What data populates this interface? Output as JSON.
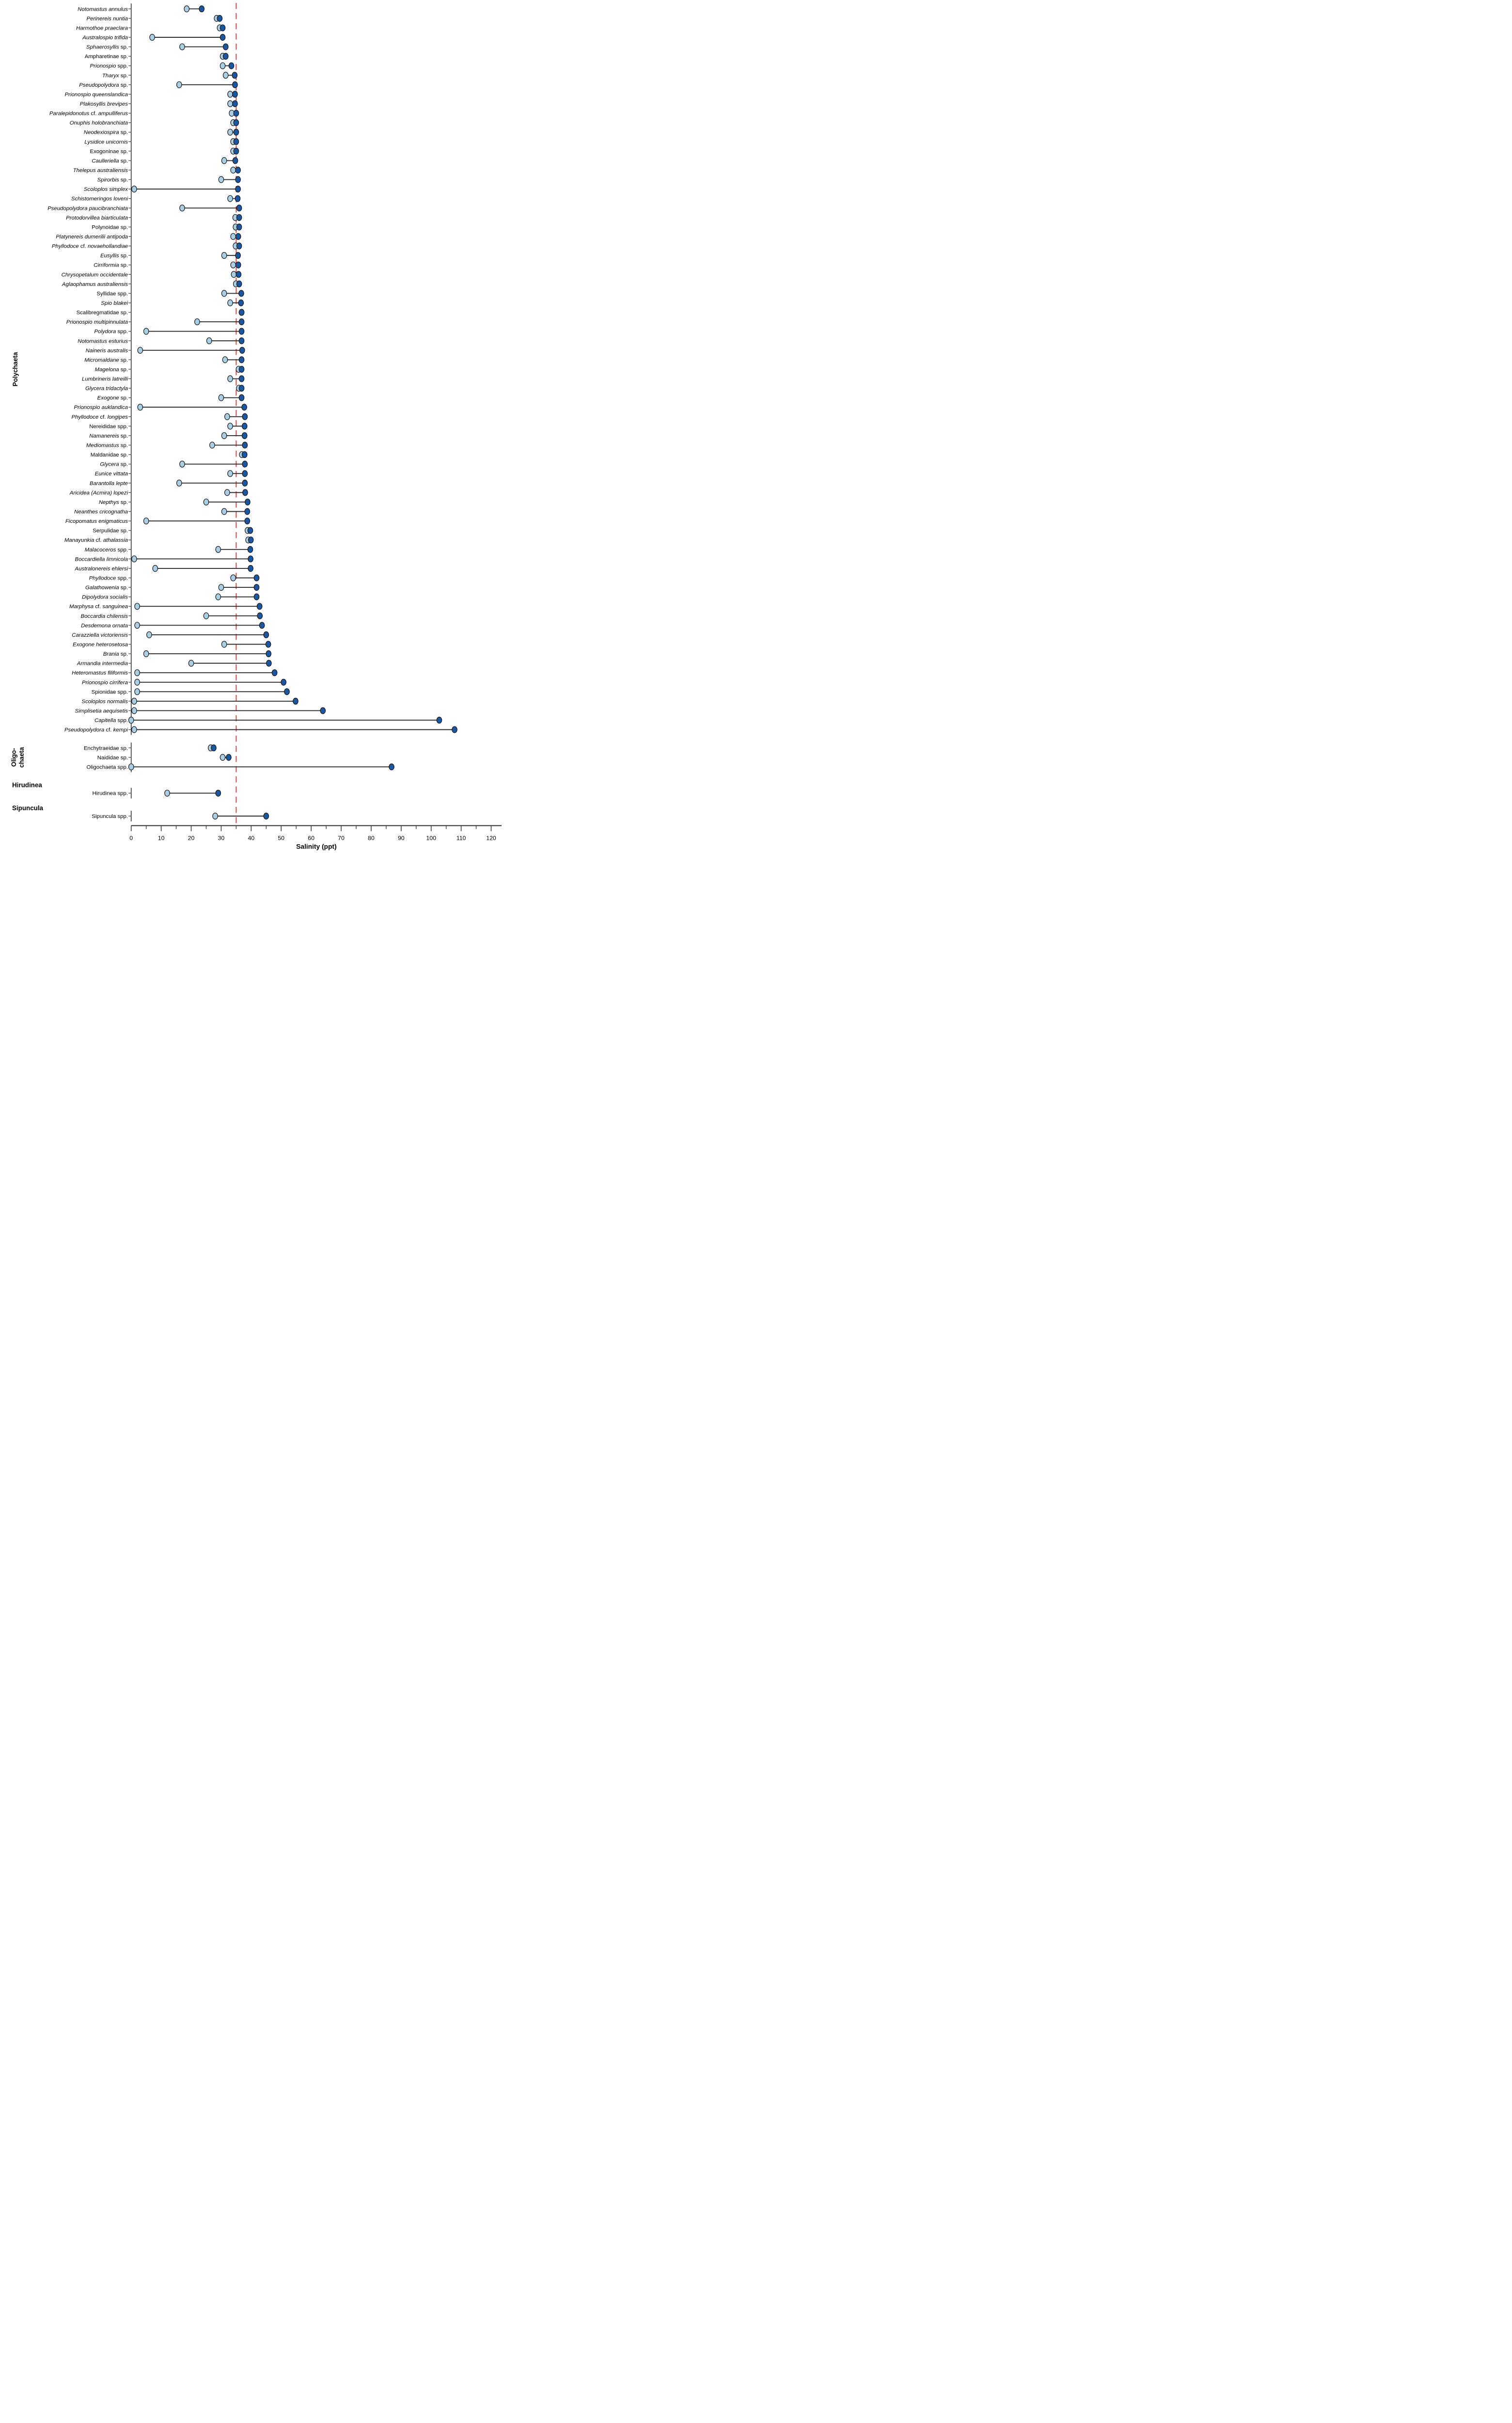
{
  "chart_data": {
    "type": "dumbbell",
    "title": "",
    "xlabel": "Salinity (ppt)",
    "xlim": [
      0,
      120
    ],
    "x_major_ticks": [
      0,
      10,
      20,
      30,
      40,
      50,
      60,
      70,
      80,
      90,
      100,
      110,
      120
    ],
    "x_minor_tick_step": 5,
    "grid": "off",
    "reference_line": {
      "value": 35,
      "style": "dashed",
      "color": "#e8231d"
    },
    "colors": {
      "min_dot": "#a9cfe6",
      "max_dot": "#1a57a0",
      "dot_outline": "#141414",
      "connector": "#2e2e2e",
      "axis": "#3f3f3f",
      "reference": "#e8231d",
      "text": "#000000"
    },
    "groups": [
      {
        "name": "Polychaeta",
        "name_lines": [
          "Polychaeta"
        ],
        "species": [
          {
            "label": "*Notomastus annulus*",
            "min": 18.5,
            "max": 23.5
          },
          {
            "label": "*Perinereis nuntia*",
            "min": 28.5,
            "max": 29.5
          },
          {
            "label": "*Harmothoe praeclara*",
            "min": 29.5,
            "max": 30.5
          },
          {
            "label": "*Australospio trifida*",
            "min": 7,
            "max": 30.5
          },
          {
            "label": "*Sphaerosyllis* sp.",
            "min": 17,
            "max": 31.5
          },
          {
            "label": "Ampharetinae sp.",
            "min": 30.5,
            "max": 31.5
          },
          {
            "label": "*Prionospio* spp.",
            "min": 30.5,
            "max": 33.4
          },
          {
            "label": "*Tharyx* sp.",
            "min": 31.5,
            "max": 34.5
          },
          {
            "label": "*Pseudopolydora* sp.",
            "min": 16,
            "max": 34.6
          },
          {
            "label": "*Prionospio queenslandica*",
            "min": 33,
            "max": 34.6
          },
          {
            "label": "*Plakosyllis brevipes*",
            "min": 33,
            "max": 34.6
          },
          {
            "label": "*Paralepidonotus* cf. *ampulliferus*",
            "min": 33.5,
            "max": 35
          },
          {
            "label": "*Onuphis holobranchiata*",
            "min": 34,
            "max": 35
          },
          {
            "label": "*Neodexiospira* sp.",
            "min": 33,
            "max": 35
          },
          {
            "label": "*Lysidice unicornis*",
            "min": 34,
            "max": 35
          },
          {
            "label": "Exogoninae sp.",
            "min": 34,
            "max": 35
          },
          {
            "label": "*Caulleriella* sp.",
            "min": 31,
            "max": 34.7
          },
          {
            "label": "*Thelepus australiensis*",
            "min": 34,
            "max": 35.6
          },
          {
            "label": "*Spirorbis* sp.",
            "min": 30,
            "max": 35.6
          },
          {
            "label": "*Scoloplos simplex*",
            "min": 1,
            "max": 35.6
          },
          {
            "label": "*Schistomeringos loveni*",
            "min": 33,
            "max": 35.5
          },
          {
            "label": "*Pseudopolydora paucibranchiata*",
            "min": 17,
            "max": 36
          },
          {
            "label": "*Protodorvillea biarticulata*",
            "min": 34.7,
            "max": 36
          },
          {
            "label": "Polynoidae sp.",
            "min": 34.8,
            "max": 36
          },
          {
            "label": "*Platynereis dumerilii antipoda*",
            "min": 34,
            "max": 35.7
          },
          {
            "label": "*Phyllodoce* cf. *novaehollandiae*",
            "min": 34.8,
            "max": 36
          },
          {
            "label": "*Eusyllis* sp.",
            "min": 31,
            "max": 35.6
          },
          {
            "label": "*Cirriformia* sp.",
            "min": 34,
            "max": 35.7
          },
          {
            "label": "*Chrysopetalum occidentale*",
            "min": 34.2,
            "max": 35.8
          },
          {
            "label": "*Aglaophamus australiensis*",
            "min": 34.9,
            "max": 36
          },
          {
            "label": "Syllidae spp.",
            "min": 31,
            "max": 36.7
          },
          {
            "label": "*Spio blakei*",
            "min": 33,
            "max": 36.6
          },
          {
            "label": "Scalibregmatidae sp.",
            "min": 36.8,
            "max": 36.8
          },
          {
            "label": "*Prionospio multipinnulata*",
            "min": 22,
            "max": 36.8
          },
          {
            "label": "*Polydora* spp.",
            "min": 5,
            "max": 36.8
          },
          {
            "label": "*Notomastus esturius*",
            "min": 26,
            "max": 36.8
          },
          {
            "label": "*Naineris australis*",
            "min": 3,
            "max": 37
          },
          {
            "label": "*Micromaldane* sp.",
            "min": 31.3,
            "max": 36.8
          },
          {
            "label": "*Magelona* sp.",
            "min": 35.8,
            "max": 36.8
          },
          {
            "label": "*Lumbrineris latreilli*",
            "min": 33,
            "max": 36.8
          },
          {
            "label": "*Glycera tridactyla*",
            "min": 35.9,
            "max": 36.8
          },
          {
            "label": "*Exogone* sp.",
            "min": 30,
            "max": 36.8
          },
          {
            "label": "*Prionospio auklandica*",
            "min": 3,
            "max": 37.7
          },
          {
            "label": "*Phyllodoce* cf. *longipes*",
            "min": 32,
            "max": 37.9
          },
          {
            "label": "Nereididae spp.",
            "min": 33,
            "max": 37.8
          },
          {
            "label": "*Namanereis* sp.",
            "min": 31,
            "max": 37.8
          },
          {
            "label": "*Mediomastus* sp.",
            "min": 27,
            "max": 37.9
          },
          {
            "label": "Maldanidae sp.",
            "min": 36.9,
            "max": 37.8
          },
          {
            "label": "*Glycera* sp.",
            "min": 17,
            "max": 37.9
          },
          {
            "label": "*Eunice vittata*",
            "min": 33,
            "max": 37.9
          },
          {
            "label": "*Barantolla lepte*",
            "min": 16,
            "max": 37.9
          },
          {
            "label": "*Aricidea (Acmira) lopezi*",
            "min": 32,
            "max": 38
          },
          {
            "label": "*Nepthys* sp.",
            "min": 25,
            "max": 38.8
          },
          {
            "label": "*Neanthes cricognatha*",
            "min": 31,
            "max": 38.7
          },
          {
            "label": "*Ficopomatus enigmaticus*",
            "min": 5,
            "max": 38.7
          },
          {
            "label": "Serpulidae sp.",
            "min": 38.8,
            "max": 39.7
          },
          {
            "label": "*Manayunkia* cf. *athalassia*",
            "min": 39,
            "max": 39.9
          },
          {
            "label": "*Malacoceros* spp.",
            "min": 29,
            "max": 39.7
          },
          {
            "label": "*Boccardiella limnicola*",
            "min": 1,
            "max": 39.8
          },
          {
            "label": "*Australonereis ehlersi*",
            "min": 8,
            "max": 39.8
          },
          {
            "label": "*Phyllodoce* spp.",
            "min": 34,
            "max": 41.8
          },
          {
            "label": "*Galathowenia* sp.",
            "min": 30,
            "max": 41.8
          },
          {
            "label": "*Dipolydora socialis*",
            "min": 29,
            "max": 41.8
          },
          {
            "label": "*Marphysa* cf. *sanguinea*",
            "min": 2,
            "max": 42.8
          },
          {
            "label": "*Boccardia chilensis*",
            "min": 25,
            "max": 42.9
          },
          {
            "label": "*Desdemona ornata*",
            "min": 2,
            "max": 43.6
          },
          {
            "label": "*Carazziella victoriensis*",
            "min": 6,
            "max": 45
          },
          {
            "label": "*Exogone heterosetosa*",
            "min": 31,
            "max": 45.7
          },
          {
            "label": "*Brania* sp.",
            "min": 5,
            "max": 45.8
          },
          {
            "label": "*Armandia intermedia*",
            "min": 20,
            "max": 45.9
          },
          {
            "label": "*Heteromastus filiformis*",
            "min": 2,
            "max": 47.8
          },
          {
            "label": "*Prionospio cirrifera*",
            "min": 2,
            "max": 50.8
          },
          {
            "label": "Spionidae spp.",
            "min": 2,
            "max": 51.9
          },
          {
            "label": "*Scoloplos normalis*",
            "min": 1,
            "max": 54.8
          },
          {
            "label": "*Simplisetia aequisetis*",
            "min": 1,
            "max": 63.9
          },
          {
            "label": "*Capitella* spp.",
            "min": 0,
            "max": 102.7
          },
          {
            "label": "*Pseudopolydora* cf. *kempi*",
            "min": 1,
            "max": 107.8
          }
        ]
      },
      {
        "name": "Oligo-chaeta",
        "name_lines": [
          "Oligo-",
          "chaeta"
        ],
        "species": [
          {
            "label": "Enchytraeidae sp.",
            "min": 26.5,
            "max": 27.5
          },
          {
            "label": "Naididae sp.",
            "min": 30.5,
            "max": 32.5
          },
          {
            "label": "Oligochaeta spp.",
            "min": 0,
            "max": 86.8
          }
        ]
      },
      {
        "name": "Hirudinea",
        "name_lines": [
          "Hirudinea"
        ],
        "species": [
          {
            "label": "Hirudinea spp.",
            "min": 12,
            "max": 29
          }
        ]
      },
      {
        "name": "Sipuncula",
        "name_lines": [
          "Sipuncula"
        ],
        "species": [
          {
            "label": "Sipuncula spp.",
            "min": 28,
            "max": 45
          }
        ]
      }
    ]
  }
}
